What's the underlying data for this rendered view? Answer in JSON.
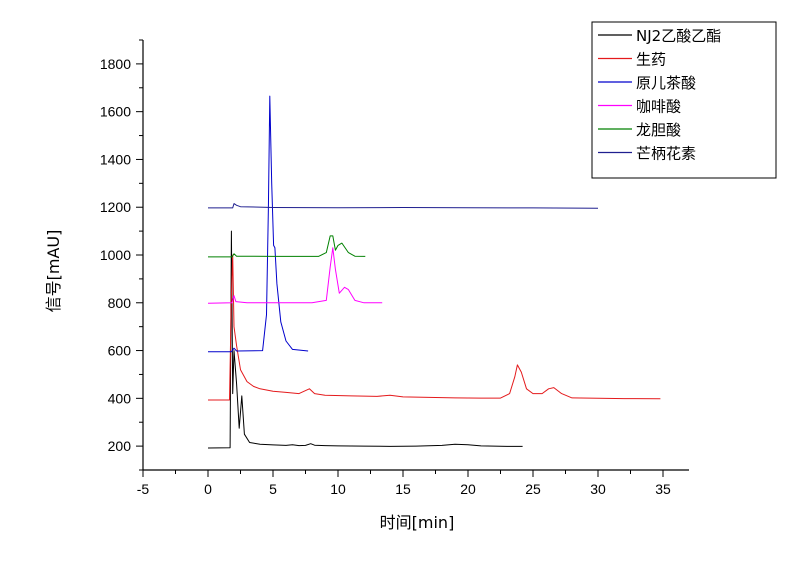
{
  "chart_data": {
    "type": "line",
    "xlabel": "时间[min]",
    "ylabel": "信号[mAU]",
    "xlim": [
      -5,
      37
    ],
    "ylim": [
      100,
      1900
    ],
    "xticks": [
      -5,
      0,
      5,
      10,
      15,
      20,
      25,
      30,
      35
    ],
    "yticks": [
      200,
      400,
      600,
      800,
      1000,
      1200,
      1400,
      1600,
      1800
    ],
    "grid": false,
    "legend_position": "top-right",
    "series": [
      {
        "name": "NJ2乙酸乙酯",
        "color": "#000000",
        "points": [
          [
            0,
            192
          ],
          [
            1.7,
            193
          ],
          [
            1.8,
            1100
          ],
          [
            1.9,
            420
          ],
          [
            2.0,
            600
          ],
          [
            2.2,
            460
          ],
          [
            2.4,
            275
          ],
          [
            2.6,
            410
          ],
          [
            2.8,
            250
          ],
          [
            3.2,
            215
          ],
          [
            4,
            208
          ],
          [
            5,
            205
          ],
          [
            6,
            203
          ],
          [
            6.5,
            206
          ],
          [
            7,
            202
          ],
          [
            7.5,
            203
          ],
          [
            7.9,
            210
          ],
          [
            8.2,
            204
          ],
          [
            9,
            202
          ],
          [
            10,
            201
          ],
          [
            12,
            200
          ],
          [
            14,
            199
          ],
          [
            16,
            200
          ],
          [
            18,
            203
          ],
          [
            19,
            208
          ],
          [
            20,
            206
          ],
          [
            21,
            201
          ],
          [
            23,
            199
          ],
          [
            24.2,
            199
          ]
        ]
      },
      {
        "name": "生药",
        "color": "#e41a1c",
        "points": [
          [
            0,
            393
          ],
          [
            1.65,
            393
          ],
          [
            1.8,
            830
          ],
          [
            1.9,
            1000
          ],
          [
            2.0,
            700
          ],
          [
            2.2,
            620
          ],
          [
            2.5,
            520
          ],
          [
            3,
            470
          ],
          [
            3.5,
            450
          ],
          [
            4,
            440
          ],
          [
            5,
            430
          ],
          [
            6,
            425
          ],
          [
            7,
            420
          ],
          [
            7.8,
            440
          ],
          [
            8.2,
            420
          ],
          [
            9,
            413
          ],
          [
            11,
            410
          ],
          [
            13,
            408
          ],
          [
            14,
            413
          ],
          [
            15,
            406
          ],
          [
            17,
            404
          ],
          [
            19,
            402
          ],
          [
            21,
            401
          ],
          [
            22.5,
            401
          ],
          [
            23.2,
            420
          ],
          [
            23.6,
            490
          ],
          [
            23.8,
            540
          ],
          [
            24.1,
            510
          ],
          [
            24.5,
            440
          ],
          [
            25,
            420
          ],
          [
            25.7,
            420
          ],
          [
            26.2,
            440
          ],
          [
            26.6,
            445
          ],
          [
            27.2,
            420
          ],
          [
            28,
            402
          ],
          [
            30,
            400
          ],
          [
            32,
            399
          ],
          [
            34.8,
            398
          ]
        ]
      },
      {
        "name": "原儿茶酸",
        "color": "#0000cc",
        "points": [
          [
            0,
            595
          ],
          [
            1.8,
            595
          ],
          [
            2.0,
            610
          ],
          [
            2.2,
            598
          ],
          [
            4.2,
            600
          ],
          [
            4.5,
            750
          ],
          [
            4.65,
            1200
          ],
          [
            4.75,
            1665
          ],
          [
            4.9,
            1300
          ],
          [
            5.05,
            1040
          ],
          [
            5.15,
            1030
          ],
          [
            5.3,
            880
          ],
          [
            5.6,
            720
          ],
          [
            6.0,
            640
          ],
          [
            6.5,
            605
          ],
          [
            7.7,
            598
          ]
        ]
      },
      {
        "name": "咖啡酸",
        "color": "#ff00ff",
        "points": [
          [
            0,
            798
          ],
          [
            1.85,
            800
          ],
          [
            2.0,
            830
          ],
          [
            2.15,
            805
          ],
          [
            3,
            800
          ],
          [
            8,
            800
          ],
          [
            9.1,
            810
          ],
          [
            9.4,
            950
          ],
          [
            9.6,
            1030
          ],
          [
            9.8,
            940
          ],
          [
            10.1,
            840
          ],
          [
            10.5,
            865
          ],
          [
            10.8,
            855
          ],
          [
            11.3,
            810
          ],
          [
            12,
            800
          ],
          [
            13.4,
            800
          ]
        ]
      },
      {
        "name": "龙胆酸",
        "color": "#008000",
        "points": [
          [
            0,
            992
          ],
          [
            1.85,
            992
          ],
          [
            2.0,
            1005
          ],
          [
            2.2,
            995
          ],
          [
            5,
            994
          ],
          [
            8.5,
            994
          ],
          [
            9.1,
            1010
          ],
          [
            9.4,
            1080
          ],
          [
            9.6,
            1080
          ],
          [
            9.8,
            1020
          ],
          [
            10,
            1040
          ],
          [
            10.3,
            1050
          ],
          [
            10.8,
            1010
          ],
          [
            11.3,
            995
          ],
          [
            12.1,
            994
          ]
        ]
      },
      {
        "name": "芒柄花素",
        "color": "#1f1f8f",
        "points": [
          [
            0,
            1197
          ],
          [
            1.9,
            1197
          ],
          [
            2.0,
            1215
          ],
          [
            2.2,
            1208
          ],
          [
            2.5,
            1202
          ],
          [
            5,
            1199
          ],
          [
            10,
            1198
          ],
          [
            15,
            1199
          ],
          [
            20,
            1198
          ],
          [
            25,
            1197
          ],
          [
            30,
            1196
          ]
        ]
      }
    ]
  }
}
